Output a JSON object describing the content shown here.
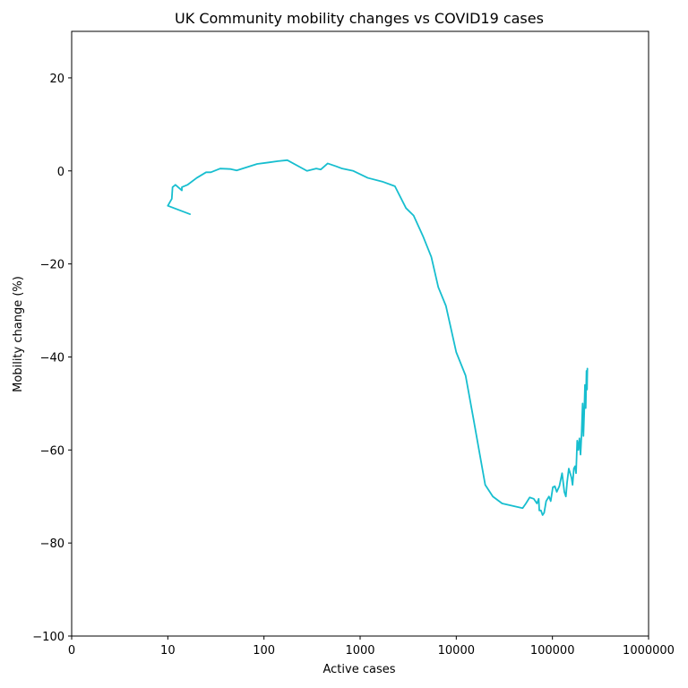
{
  "chart_data": {
    "type": "line",
    "title": "UK Community mobility changes vs COVID19 cases",
    "xlabel": "Active cases",
    "ylabel": "Mobility change (%)",
    "x_scale": "log",
    "xlim": [
      1,
      1000000
    ],
    "ylim": [
      -100,
      30
    ],
    "x_ticks": [
      {
        "value": 1,
        "label": "0"
      },
      {
        "value": 10,
        "label": "10"
      },
      {
        "value": 100,
        "label": "100"
      },
      {
        "value": 1000,
        "label": "1000"
      },
      {
        "value": 10000,
        "label": "10000"
      },
      {
        "value": 100000,
        "label": "100000"
      },
      {
        "value": 1000000,
        "label": "1000000"
      }
    ],
    "y_ticks": [
      {
        "value": 20,
        "label": "20"
      },
      {
        "value": 0,
        "label": "0"
      },
      {
        "value": -20,
        "label": "−20"
      },
      {
        "value": -40,
        "label": "−40"
      },
      {
        "value": -60,
        "label": "−60"
      },
      {
        "value": -80,
        "label": "−80"
      },
      {
        "value": -100,
        "label": "−100"
      }
    ],
    "grid": false,
    "series": [
      {
        "color": "#17becf",
        "points": [
          [
            17,
            -9.3
          ],
          [
            10,
            -7.5
          ],
          [
            11,
            -6
          ],
          [
            11.2,
            -3.5
          ],
          [
            12,
            -3
          ],
          [
            14,
            -4.2
          ],
          [
            14,
            -3.5
          ],
          [
            16,
            -3
          ],
          [
            20,
            -1.5
          ],
          [
            25,
            -0.3
          ],
          [
            28,
            -0.3
          ],
          [
            35,
            0.5
          ],
          [
            45,
            0.4
          ],
          [
            52,
            0.1
          ],
          [
            85,
            1.5
          ],
          [
            110,
            1.8
          ],
          [
            140,
            2.1
          ],
          [
            175,
            2.3
          ],
          [
            280,
            0
          ],
          [
            350,
            0.5
          ],
          [
            390,
            0.3
          ],
          [
            460,
            1.6
          ],
          [
            560,
            1
          ],
          [
            650,
            0.5
          ],
          [
            850,
            0
          ],
          [
            1200,
            -1.5
          ],
          [
            1700,
            -2.3
          ],
          [
            2300,
            -3.3
          ],
          [
            3000,
            -8
          ],
          [
            3600,
            -9.6
          ],
          [
            4500,
            -14
          ],
          [
            5500,
            -18.5
          ],
          [
            6500,
            -25
          ],
          [
            7800,
            -29
          ],
          [
            10000,
            -39
          ],
          [
            12500,
            -44
          ],
          [
            15000,
            -53
          ],
          [
            20000,
            -67.5
          ],
          [
            24000,
            -70
          ],
          [
            30000,
            -71.5
          ],
          [
            49000,
            -72.5
          ],
          [
            53000,
            -71.5
          ],
          [
            58000,
            -70.2
          ],
          [
            64000,
            -70.5
          ],
          [
            69000,
            -71.5
          ],
          [
            72000,
            -70.5
          ],
          [
            73000,
            -73
          ],
          [
            76000,
            -73
          ],
          [
            79000,
            -74
          ],
          [
            82000,
            -73.5
          ],
          [
            86000,
            -71
          ],
          [
            92000,
            -70
          ],
          [
            96000,
            -71
          ],
          [
            101000,
            -68
          ],
          [
            106000,
            -67.8
          ],
          [
            111000,
            -69
          ],
          [
            118000,
            -67.8
          ],
          [
            126000,
            -65
          ],
          [
            133000,
            -69
          ],
          [
            138000,
            -70
          ],
          [
            142000,
            -67
          ],
          [
            148000,
            -64
          ],
          [
            153000,
            -65
          ],
          [
            158000,
            -66
          ],
          [
            162000,
            -67.5
          ],
          [
            167000,
            -64
          ],
          [
            172000,
            -63.5
          ],
          [
            176000,
            -65
          ],
          [
            181000,
            -58
          ],
          [
            186000,
            -60
          ],
          [
            191000,
            -57.5
          ],
          [
            196000,
            -61
          ],
          [
            201000,
            -56.5
          ],
          [
            206000,
            -50
          ],
          [
            210000,
            -57
          ],
          [
            214000,
            -52
          ],
          [
            218000,
            -46
          ],
          [
            222000,
            -51
          ],
          [
            226000,
            -43
          ],
          [
            229000,
            -47
          ],
          [
            231000,
            -42.5
          ]
        ]
      }
    ]
  }
}
